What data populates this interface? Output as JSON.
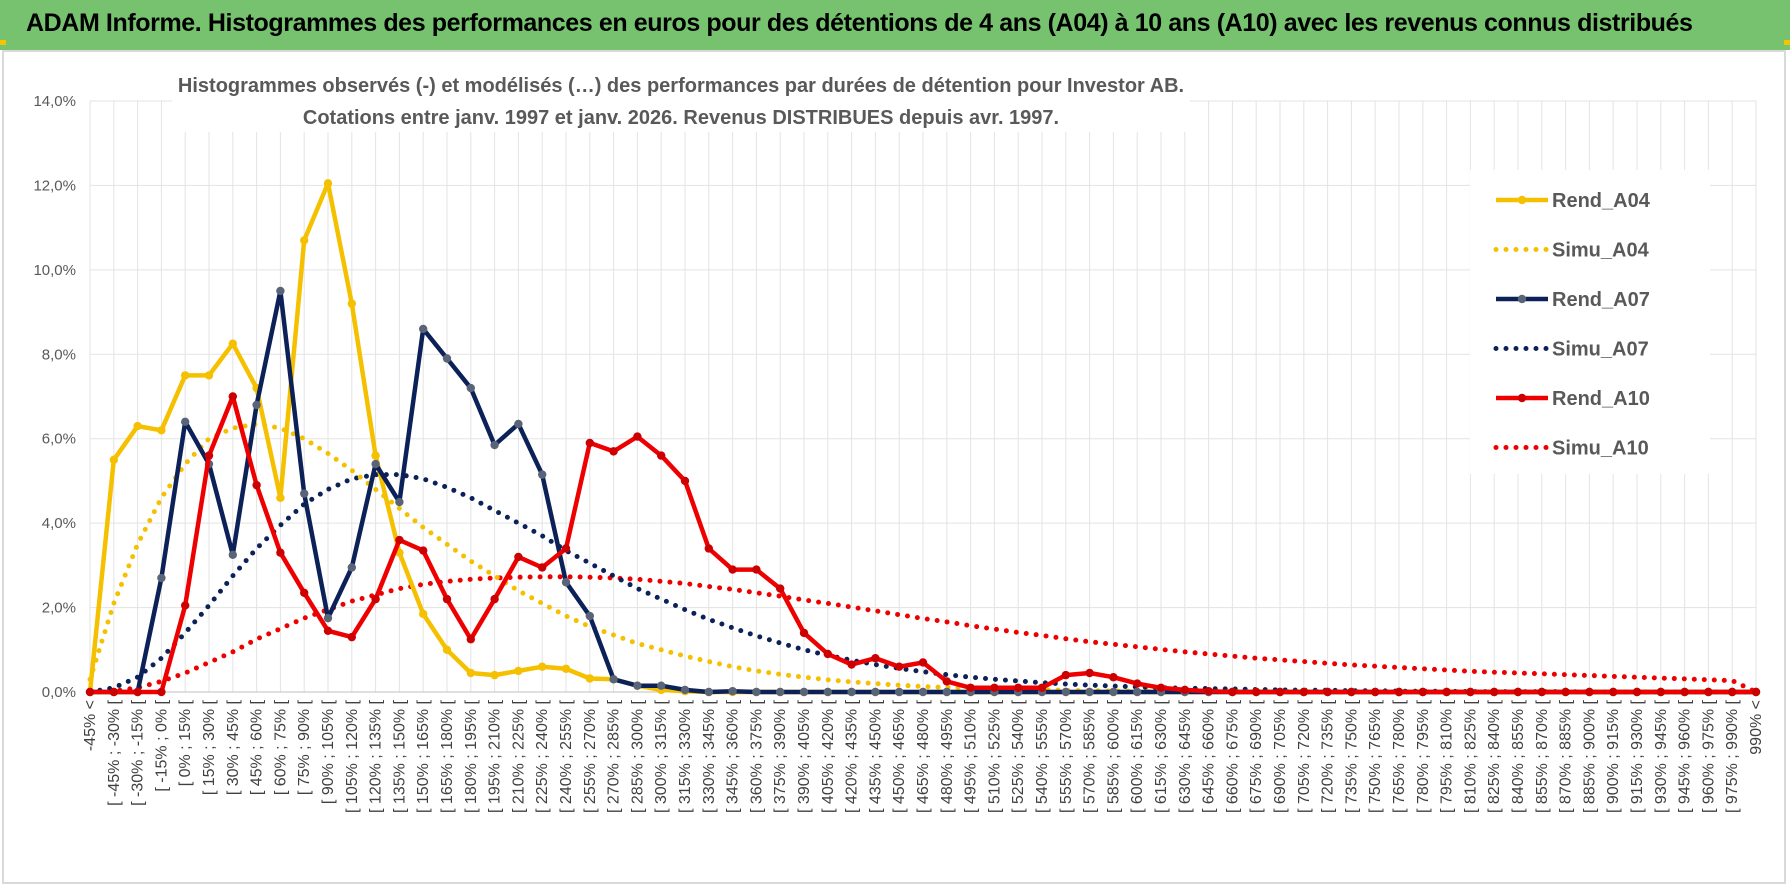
{
  "banner": {
    "title": "ADAM Informe. Histogrammes des performances en euros pour des détentions de 4 ans (A04) à 10 ans (A10) avec les revenus connus distribués"
  },
  "colors": {
    "banner": "#76c26f",
    "a04": "#f5c000",
    "a07": "#0c2157",
    "a10": "#ee0000",
    "marker_a07": "#5a6478",
    "marker_a10": "#cc0000",
    "marker_a04": "#f5c000"
  },
  "chart_data": {
    "type": "line",
    "title": "Histogrammes observés (-) et modélisés (…) des performances par durées de détention pour Investor AB.",
    "subtitle": "Cotations entre janv. 1997 et janv. 2026. Revenus DISTRIBUES depuis avr. 1997.",
    "xlabel": "",
    "ylabel": "",
    "ylim": [
      0,
      14
    ],
    "ytick_labels": [
      "0,0%",
      "2,0%",
      "4,0%",
      "6,0%",
      "8,0%",
      "10,0%",
      "12,0%",
      "14,0%"
    ],
    "grid": true,
    "legend_position": "right",
    "categories": [
      "-45% <",
      "[ -45% ; -30% [",
      "[ -30% ; -15% [",
      "[ -15% ; 0% [",
      "[ 0% ; 15% [",
      "[ 15% ; 30% [",
      "[ 30% ; 45% [",
      "[ 45% ; 60% [",
      "[ 60% ; 75% [",
      "[ 75% ; 90% [",
      "[ 90% ; 105% [",
      "[ 105% ; 120% [",
      "[ 120% ; 135% [",
      "[ 135% ; 150% [",
      "[ 150% ; 165% [",
      "[ 165% ; 180% [",
      "[ 180% ; 195% [",
      "[ 195% ; 210% [",
      "[ 210% ; 225% [",
      "[ 225% ; 240% [",
      "[ 240% ; 255% [",
      "[ 255% ; 270% [",
      "[ 270% ; 285% [",
      "[ 285% ; 300% [",
      "[ 300% ; 315% [",
      "[ 315% ; 330% [",
      "[ 330% ; 345% [",
      "[ 345% ; 360% [",
      "[ 360% ; 375% [",
      "[ 375% ; 390% [",
      "[ 390% ; 405% [",
      "[ 405% ; 420% [",
      "[ 420% ; 435% [",
      "[ 435% ; 450% [",
      "[ 450% ; 465% [",
      "[ 465% ; 480% [",
      "[ 480% ; 495% [",
      "[ 495% ; 510% [",
      "[ 510% ; 525% [",
      "[ 525% ; 540% [",
      "[ 540% ; 555% [",
      "[ 555% ; 570% [",
      "[ 570% ; 585% [",
      "[ 585% ; 600% [",
      "[ 600% ; 615% [",
      "[ 615% ; 630% [",
      "[ 630% ; 645% [",
      "[ 645% ; 660% [",
      "[ 660% ; 675% [",
      "[ 675% ; 690% [",
      "[ 690% ; 705% [",
      "[ 705% ; 720% [",
      "[ 720% ; 735% [",
      "[ 735% ; 750% [",
      "[ 750% ; 765% [",
      "[ 765% ; 780% [",
      "[ 780% ; 795% [",
      "[ 795% ; 810% [",
      "[ 810% ; 825% [",
      "[ 825% ; 840% [",
      "[ 840% ; 855% [",
      "[ 855% ; 870% [",
      "[ 870% ; 885% [",
      "[ 885% ; 900% [",
      "[ 900% ; 915% [",
      "[ 915% ; 930% [",
      "[ 930% ; 945% [",
      "[ 945% ; 960% [",
      "[ 960% ; 975% [",
      "[ 975% ; 990% [",
      "990% <"
    ],
    "series": [
      {
        "name": "Rend_A04",
        "style": "solid",
        "color": "#f5c000",
        "values": [
          0.0,
          5.5,
          6.3,
          6.2,
          7.5,
          7.5,
          8.25,
          7.2,
          4.6,
          10.7,
          12.05,
          9.2,
          5.6,
          3.3,
          1.85,
          1.0,
          0.45,
          0.4,
          0.5,
          0.6,
          0.55,
          0.32,
          0.3,
          0.15,
          0.05,
          0.02,
          0.0,
          0.0,
          0.0,
          0.0,
          0.0,
          0.0,
          0.0,
          0.0,
          0.0,
          0.0,
          0.0,
          0.0,
          0.0,
          0.0,
          0.0,
          0.0,
          0.0,
          0.0,
          0.0,
          0.0,
          0.0,
          0.0,
          0.0,
          0.0,
          0.0,
          0.0,
          0.0,
          0.0,
          0.0,
          0.0,
          0.0,
          0.0,
          0.0,
          0.0,
          0.0,
          0.0,
          0.0,
          0.0,
          0.0,
          0.0,
          0.0,
          0.0,
          0.0,
          0.0,
          0.0
        ]
      },
      {
        "name": "Simu_A04",
        "style": "dotted",
        "color": "#f5c000",
        "values": [
          0.3,
          2.1,
          3.5,
          4.6,
          5.4,
          6.0,
          6.25,
          6.35,
          6.25,
          6.0,
          5.65,
          5.25,
          4.8,
          4.35,
          3.9,
          3.5,
          3.1,
          2.75,
          2.4,
          2.1,
          1.8,
          1.55,
          1.35,
          1.15,
          1.0,
          0.85,
          0.72,
          0.6,
          0.5,
          0.42,
          0.35,
          0.29,
          0.24,
          0.2,
          0.16,
          0.13,
          0.11,
          0.09,
          0.07,
          0.06,
          0.05,
          0.04,
          0.03,
          0.025,
          0.02,
          0.015,
          0.012,
          0.01,
          0.008,
          0.006,
          0.005,
          0.004,
          0.003,
          0.002,
          0.002,
          0.001,
          0.001,
          0.001,
          0.0,
          0.0,
          0.0,
          0.0,
          0.0,
          0.0,
          0.0,
          0.0,
          0.0,
          0.0,
          0.0,
          0.0,
          0.0
        ]
      },
      {
        "name": "Rend_A07",
        "style": "solid",
        "color": "#0c2157",
        "values": [
          0.0,
          0.0,
          0.0,
          2.7,
          6.4,
          5.4,
          3.25,
          6.8,
          9.5,
          4.7,
          1.75,
          2.95,
          5.4,
          4.5,
          8.6,
          7.9,
          7.2,
          5.85,
          6.35,
          5.15,
          2.6,
          1.8,
          0.3,
          0.15,
          0.15,
          0.05,
          0.0,
          0.02,
          0.0,
          0.0,
          0.0,
          0.0,
          0.0,
          0.0,
          0.0,
          0.0,
          0.0,
          0.0,
          0.0,
          0.0,
          0.0,
          0.0,
          0.0,
          0.0,
          0.0,
          0.0,
          0.0,
          0.0,
          0.0,
          0.0,
          0.0,
          0.0,
          0.0,
          0.0,
          0.0,
          0.0,
          0.0,
          0.0,
          0.0,
          0.0,
          0.0,
          0.0,
          0.0,
          0.0,
          0.0,
          0.0,
          0.0,
          0.0,
          0.0,
          0.0,
          0.0
        ]
      },
      {
        "name": "Simu_A07",
        "style": "dotted",
        "color": "#0c2157",
        "values": [
          0.0,
          0.1,
          0.35,
          0.8,
          1.4,
          2.05,
          2.75,
          3.4,
          3.95,
          4.45,
          4.8,
          5.05,
          5.15,
          5.15,
          5.05,
          4.85,
          4.6,
          4.3,
          4.0,
          3.7,
          3.35,
          3.05,
          2.75,
          2.45,
          2.2,
          1.95,
          1.72,
          1.52,
          1.33,
          1.16,
          1.0,
          0.87,
          0.75,
          0.65,
          0.56,
          0.48,
          0.41,
          0.35,
          0.3,
          0.26,
          0.22,
          0.19,
          0.16,
          0.14,
          0.12,
          0.1,
          0.09,
          0.08,
          0.07,
          0.06,
          0.05,
          0.04,
          0.04,
          0.03,
          0.03,
          0.02,
          0.02,
          0.02,
          0.01,
          0.01,
          0.01,
          0.01,
          0.01,
          0.0,
          0.0,
          0.0,
          0.0,
          0.0,
          0.0,
          0.0,
          0.0
        ]
      },
      {
        "name": "Rend_A10",
        "style": "solid",
        "color": "#ee0000",
        "values": [
          0.0,
          0.0,
          0.0,
          0.0,
          2.05,
          5.6,
          7.0,
          4.9,
          3.3,
          2.35,
          1.45,
          1.3,
          2.2,
          3.6,
          3.35,
          2.2,
          1.25,
          2.2,
          3.2,
          2.95,
          3.4,
          5.9,
          5.7,
          6.05,
          5.6,
          5.0,
          3.4,
          2.9,
          2.9,
          2.45,
          1.4,
          0.9,
          0.65,
          0.8,
          0.6,
          0.7,
          0.25,
          0.1,
          0.1,
          0.1,
          0.1,
          0.4,
          0.45,
          0.35,
          0.2,
          0.1,
          0.05,
          0.02,
          0.0,
          0.0,
          0.0,
          0.0,
          0.0,
          0.0,
          0.0,
          0.0,
          0.0,
          0.0,
          0.0,
          0.0,
          0.0,
          0.0,
          0.0,
          0.0,
          0.0,
          0.0,
          0.0,
          0.0,
          0.0,
          0.0,
          0.0
        ]
      },
      {
        "name": "Simu_A10",
        "style": "dotted",
        "color": "#ee0000",
        "values": [
          0.0,
          0.02,
          0.1,
          0.25,
          0.45,
          0.7,
          0.95,
          1.25,
          1.5,
          1.75,
          1.95,
          2.15,
          2.3,
          2.45,
          2.55,
          2.62,
          2.67,
          2.7,
          2.72,
          2.73,
          2.73,
          2.72,
          2.7,
          2.67,
          2.62,
          2.57,
          2.5,
          2.43,
          2.35,
          2.27,
          2.18,
          2.1,
          2.01,
          1.92,
          1.83,
          1.74,
          1.66,
          1.57,
          1.49,
          1.41,
          1.34,
          1.26,
          1.19,
          1.13,
          1.07,
          1.01,
          0.95,
          0.9,
          0.85,
          0.8,
          0.76,
          0.72,
          0.68,
          0.64,
          0.61,
          0.58,
          0.55,
          0.52,
          0.49,
          0.47,
          0.45,
          0.43,
          0.41,
          0.39,
          0.37,
          0.35,
          0.33,
          0.31,
          0.29,
          0.27,
          0.0
        ]
      }
    ]
  }
}
